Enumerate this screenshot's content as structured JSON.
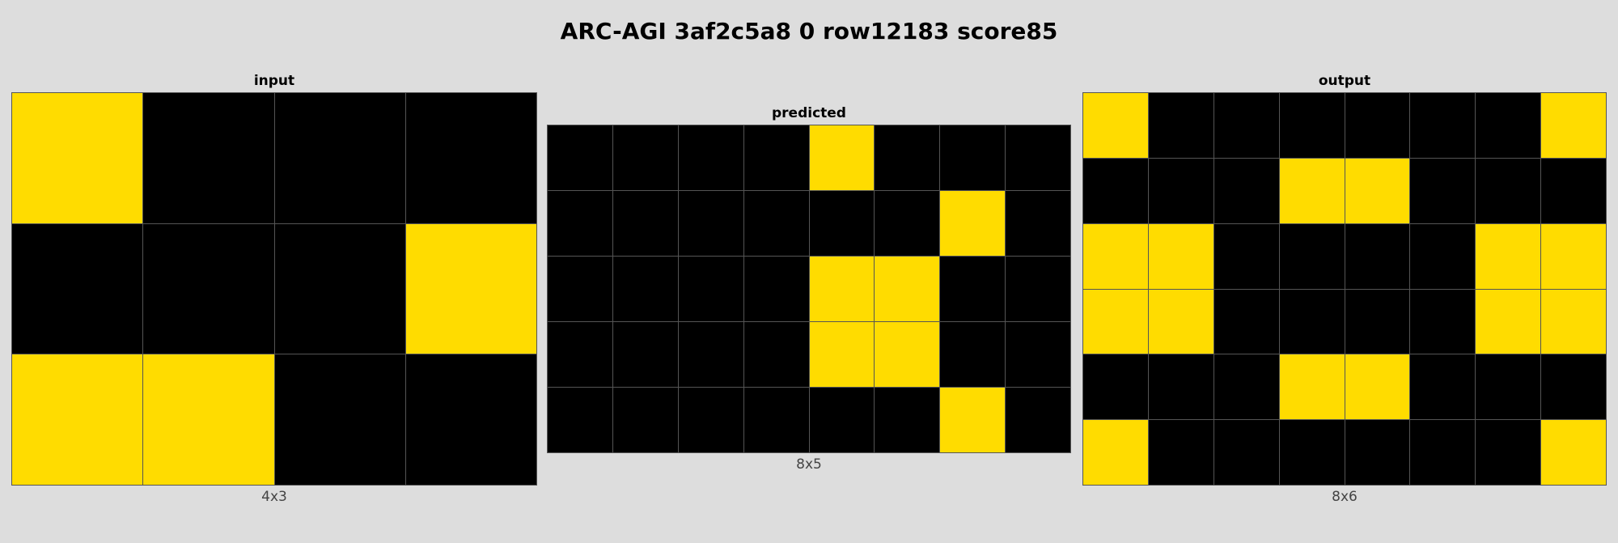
{
  "title": "ARC-AGI 3af2c5a8 0 row12183 score85",
  "colors": {
    "0": "#000000",
    "4": "#ffdc00",
    "grid_line": "#555555",
    "background": "#dddddd"
  },
  "panels": [
    {
      "label": "input",
      "dims": "4x3",
      "grid": [
        [
          4,
          0,
          0,
          0
        ],
        [
          0,
          0,
          0,
          4
        ],
        [
          4,
          4,
          0,
          0
        ]
      ]
    },
    {
      "label": "predicted",
      "dims": "8x5",
      "grid": [
        [
          0,
          0,
          0,
          0,
          4,
          0,
          0,
          0
        ],
        [
          0,
          0,
          0,
          0,
          0,
          0,
          4,
          0
        ],
        [
          0,
          0,
          0,
          0,
          4,
          4,
          0,
          0
        ],
        [
          0,
          0,
          0,
          0,
          4,
          4,
          0,
          0
        ],
        [
          0,
          0,
          0,
          0,
          0,
          0,
          4,
          0
        ]
      ]
    },
    {
      "label": "output",
      "dims": "8x6",
      "grid": [
        [
          4,
          0,
          0,
          0,
          0,
          0,
          0,
          4
        ],
        [
          0,
          0,
          0,
          4,
          4,
          0,
          0,
          0
        ],
        [
          4,
          4,
          0,
          0,
          0,
          0,
          4,
          4
        ],
        [
          4,
          4,
          0,
          0,
          0,
          0,
          4,
          4
        ],
        [
          0,
          0,
          0,
          4,
          4,
          0,
          0,
          0
        ],
        [
          4,
          0,
          0,
          0,
          0,
          0,
          0,
          4
        ]
      ]
    }
  ]
}
